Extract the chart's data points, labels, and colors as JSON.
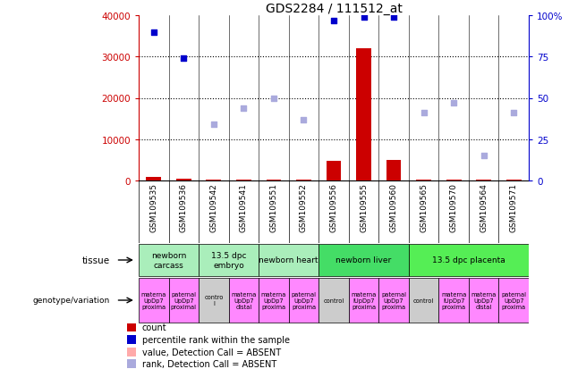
{
  "title": "GDS2284 / 111512_at",
  "samples": [
    "GSM109535",
    "GSM109536",
    "GSM109542",
    "GSM109541",
    "GSM109551",
    "GSM109552",
    "GSM109556",
    "GSM109555",
    "GSM109560",
    "GSM109565",
    "GSM109570",
    "GSM109564",
    "GSM109571"
  ],
  "count_values": [
    800,
    350,
    150,
    250,
    150,
    150,
    4800,
    32000,
    5000,
    150,
    150,
    150,
    150
  ],
  "count_absent": [
    false,
    false,
    false,
    false,
    false,
    false,
    false,
    false,
    false,
    false,
    false,
    false,
    false
  ],
  "percentile_values": [
    90,
    74,
    34,
    44,
    50,
    37,
    97,
    99,
    99,
    41,
    47,
    15,
    41
  ],
  "percentile_absent": [
    false,
    false,
    true,
    true,
    true,
    true,
    false,
    false,
    false,
    true,
    true,
    true,
    true
  ],
  "ylim_left": [
    0,
    40000
  ],
  "ylim_right": [
    0,
    100
  ],
  "yticks_left": [
    0,
    10000,
    20000,
    30000,
    40000
  ],
  "ytick_labels_left": [
    "0",
    "10000",
    "20000",
    "30000",
    "40000"
  ],
  "yticks_right": [
    0,
    25,
    50,
    75,
    100
  ],
  "ytick_labels_right": [
    "0",
    "25",
    "50",
    "75",
    "100%"
  ],
  "tissues": [
    {
      "label": "newborn\ncarcass",
      "start": 0,
      "end": 2,
      "color": "#AAEEBB"
    },
    {
      "label": "13.5 dpc\nembryo",
      "start": 2,
      "end": 4,
      "color": "#AAEEBB"
    },
    {
      "label": "newborn heart",
      "start": 4,
      "end": 6,
      "color": "#AAEEBB"
    },
    {
      "label": "newborn liver",
      "start": 6,
      "end": 9,
      "color": "#44DD66"
    },
    {
      "label": "13.5 dpc placenta",
      "start": 9,
      "end": 13,
      "color": "#55EE55"
    }
  ],
  "genotypes": [
    {
      "label": "materna\nUpDp7\nproxima",
      "start": 0,
      "end": 1,
      "color": "#FF88FF"
    },
    {
      "label": "paternal\nUpDp7\nproximal",
      "start": 1,
      "end": 2,
      "color": "#FF88FF"
    },
    {
      "label": "contro\nl",
      "start": 2,
      "end": 3,
      "color": "#CCCCCC"
    },
    {
      "label": "materna\nUpDp7\ndistal",
      "start": 3,
      "end": 4,
      "color": "#FF88FF"
    },
    {
      "label": "materna\nUpDp7\nproxima",
      "start": 4,
      "end": 5,
      "color": "#FF88FF"
    },
    {
      "label": "paternal\nUpDp7\nproxima",
      "start": 5,
      "end": 6,
      "color": "#FF88FF"
    },
    {
      "label": "control",
      "start": 6,
      "end": 7,
      "color": "#CCCCCC"
    },
    {
      "label": "materna\nlUpDp7\nproxima",
      "start": 7,
      "end": 8,
      "color": "#FF88FF"
    },
    {
      "label": "paternal\nUpDp7\nproxima",
      "start": 8,
      "end": 9,
      "color": "#FF88FF"
    },
    {
      "label": "control",
      "start": 9,
      "end": 10,
      "color": "#CCCCCC"
    },
    {
      "label": "materna\nlUpDp7\nproxima",
      "start": 10,
      "end": 11,
      "color": "#FF88FF"
    },
    {
      "label": "materna\nUpDp7\ndistal",
      "start": 11,
      "end": 12,
      "color": "#FF88FF"
    },
    {
      "label": "paternal\nUpDp7\nproxima",
      "start": 12,
      "end": 13,
      "color": "#FF88FF"
    }
  ],
  "bar_color_present": "#CC0000",
  "bar_color_absent": "#FFAAAA",
  "dot_color_present": "#0000CC",
  "dot_color_absent": "#AAAADD",
  "bg_color": "#FFFFFF",
  "xtick_bg": "#CCCCCC",
  "left_axis_color": "#CC0000",
  "right_axis_color": "#0000CC"
}
